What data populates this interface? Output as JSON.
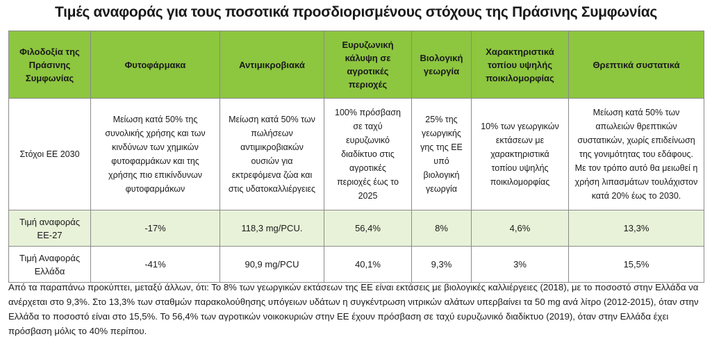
{
  "title": "Τιμές αναφοράς για τους ποσοτικά προσδιορισμένους στόχους της Πράσινης Συμφωνίας",
  "table": {
    "headers": [
      "Φιλοδοξία της Πράσινης Συμφωνίας",
      "Φυτοφάρμακα",
      "Αντιμικροβιακά",
      "Ευρυζωνική κάλυψη σε αγροτικές περιοχές",
      "Βιολογική γεωργία",
      "Χαρακτηριστικά τοπίου υψηλής ποικιλομορφίας",
      "Θρεπτικά συστατικά"
    ],
    "rows": [
      {
        "label": "Στόχοι ΕΕ 2030",
        "cells": [
          "Μείωση κατά 50% της συνολικής χρήσης και των κινδύνων των χημικών φυτοφαρμάκων και της χρήσης πιο επικίνδυνων φυτοφαρμάκων",
          "Μείωση κατά 50% των πωλήσεων αντιμικροβιακών ουσιών για εκτρεφόμενα ζώα και στις υδατοκαλλιέργειες",
          "100% πρόσβαση σε ταχύ ευρυζωνικό διαδίκτυο στις αγροτικές περιοχές έως το 2025",
          "25% της γεωργικής γης της ΕΕ υπό βιολογική γεωργία",
          "10% των γεωργικών εκτάσεων με χαρακτηριστικά τοπίου υψηλής ποικιλομορφίας",
          "Μείωση κατά 50% των απωλειών θρεπτικών συστατικών, χωρίς επιδείνωση της γονιμότητας του εδάφους. Με τον τρόπο αυτό θα μειωθεί η χρήση λιπασμάτων τουλάχιστον κατά 20% έως το 2030."
        ]
      },
      {
        "label": "Τιμή αναφοράς ΕΕ-27",
        "cells": [
          "-17%",
          "118,3 mg/PCU.",
          "56,4%",
          "8%",
          "4,6%",
          "13,3%"
        ]
      },
      {
        "label": "Τιμή Αναφοράς Ελλάδα",
        "cells": [
          "-41%",
          "90,9 mg/PCU",
          "40,1%",
          "9,3%",
          "3%",
          "15,5%"
        ]
      }
    ]
  },
  "footer": "Από τα παραπάνω προκύπτει, μεταξύ άλλων, ότι: Το 8% των γεωργικών εκτάσεων της ΕΕ είναι εκτάσεις με βιολογικές καλλιέργειες (2018), με το ποσοστό στην Ελλάδα να ανέρχεται στο 9,3%. Στο 13,3% των σταθμών παρακολούθησης υπόγειων υδάτων η συγκέντρωση νιτρικών αλάτων υπερβαίνει τα 50 mg ανά λίτρο (2012-2015), όταν στην Ελλάδα το ποσοστό είναι στο 15,5%. Το 56,4% των αγροτικών νοικοκυριών στην ΕΕ έχουν πρόσβαση σε ταχύ ευρυζωνικό διαδίκτυο (2019), όταν στην Ελλάδα έχει πρόσβαση μόλις το 40% περίπου.",
  "colors": {
    "header_green": "#8dc63f",
    "light_green_row": "#e8f2d8",
    "border": "#8a8a8a"
  }
}
